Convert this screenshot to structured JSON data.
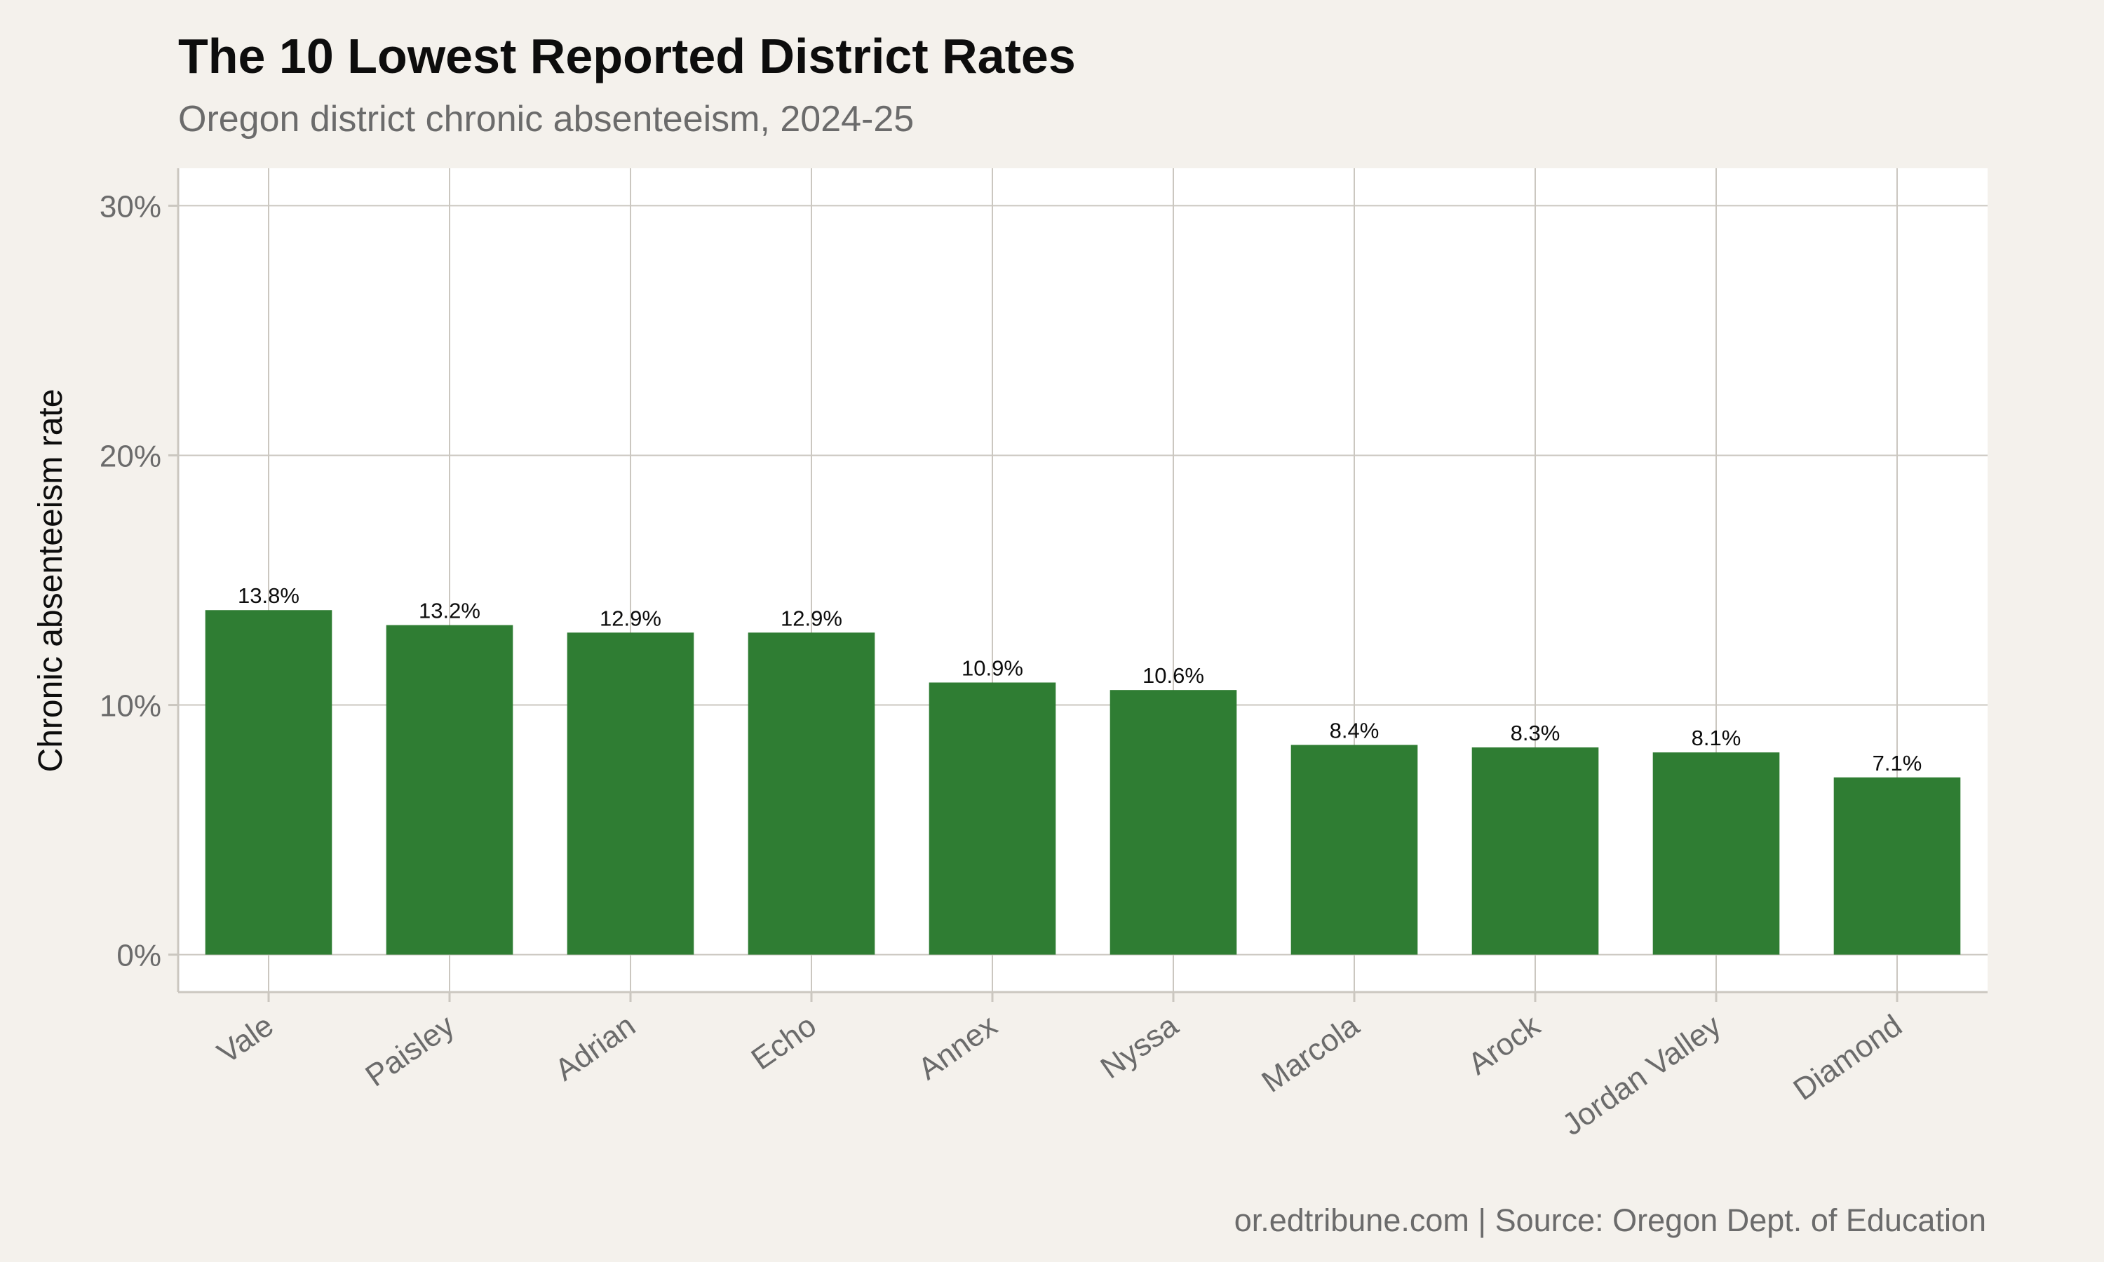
{
  "header": {
    "title": "The 10 Lowest Reported District Rates",
    "subtitle": "Oregon district chronic absenteeism, 2024-25"
  },
  "footer": {
    "caption": "or.edtribune.com | Source: Oregon Dept. of Education"
  },
  "colors": {
    "background": "#f4f1ec",
    "panel": "#ffffff",
    "bar": "#2f7d33",
    "grid": "#cbc7c0",
    "axis_text": "#6b6b6b",
    "label_text": "#0d0d0d"
  },
  "chart_data": {
    "type": "bar",
    "title": "The 10 Lowest Reported District Rates",
    "subtitle": "Oregon district chronic absenteeism, 2024-25",
    "xlabel": "",
    "ylabel": "Chronic absenteeism rate",
    "categories": [
      "Vale",
      "Paisley",
      "Adrian",
      "Echo",
      "Annex",
      "Nyssa",
      "Marcola",
      "Arock",
      "Jordan Valley",
      "Diamond"
    ],
    "values": [
      13.8,
      13.2,
      12.9,
      12.9,
      10.9,
      10.6,
      8.4,
      8.3,
      8.1,
      7.1
    ],
    "data_labels": [
      "13.8%",
      "13.2%",
      "12.9%",
      "12.9%",
      "10.9%",
      "10.6%",
      "8.4%",
      "8.3%",
      "8.1%",
      "7.1%"
    ],
    "yticks": [
      0,
      10,
      20,
      30
    ],
    "ytick_labels": [
      "0%",
      "10%",
      "20%",
      "30%"
    ],
    "ylim": [
      -1.5,
      31.5
    ],
    "grid": true,
    "legend": "none"
  }
}
